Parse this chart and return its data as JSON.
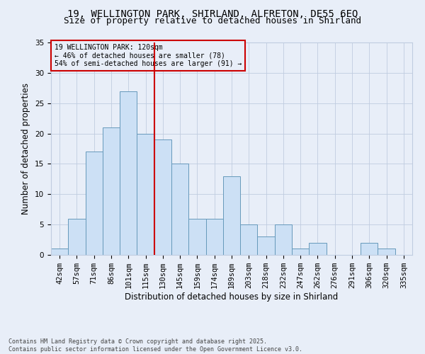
{
  "title": "19, WELLINGTON PARK, SHIRLAND, ALFRETON, DE55 6EQ",
  "subtitle": "Size of property relative to detached houses in Shirland",
  "xlabel": "Distribution of detached houses by size in Shirland",
  "ylabel": "Number of detached properties",
  "bar_color": "#cce0f5",
  "bar_edge_color": "#6699bb",
  "categories": [
    "42sqm",
    "57sqm",
    "71sqm",
    "86sqm",
    "101sqm",
    "115sqm",
    "130sqm",
    "145sqm",
    "159sqm",
    "174sqm",
    "189sqm",
    "203sqm",
    "218sqm",
    "232sqm",
    "247sqm",
    "262sqm",
    "276sqm",
    "291sqm",
    "306sqm",
    "320sqm",
    "335sqm"
  ],
  "values": [
    1,
    6,
    17,
    21,
    27,
    20,
    19,
    15,
    6,
    6,
    13,
    5,
    3,
    5,
    1,
    2,
    0,
    0,
    2,
    1,
    0
  ],
  "ylim": [
    0,
    35
  ],
  "yticks": [
    0,
    5,
    10,
    15,
    20,
    25,
    30,
    35
  ],
  "vline_x": 5.5,
  "vline_color": "#cc0000",
  "annotation_text": "19 WELLINGTON PARK: 120sqm\n← 46% of detached houses are smaller (78)\n54% of semi-detached houses are larger (91) →",
  "annotation_box_color": "#cc0000",
  "footer_text": "Contains HM Land Registry data © Crown copyright and database right 2025.\nContains public sector information licensed under the Open Government Licence v3.0.",
  "background_color": "#e8eef8",
  "grid_color": "#c0cce0",
  "title_fontsize": 10,
  "subtitle_fontsize": 9,
  "axis_label_fontsize": 8.5,
  "tick_fontsize": 7.5,
  "footer_fontsize": 6
}
